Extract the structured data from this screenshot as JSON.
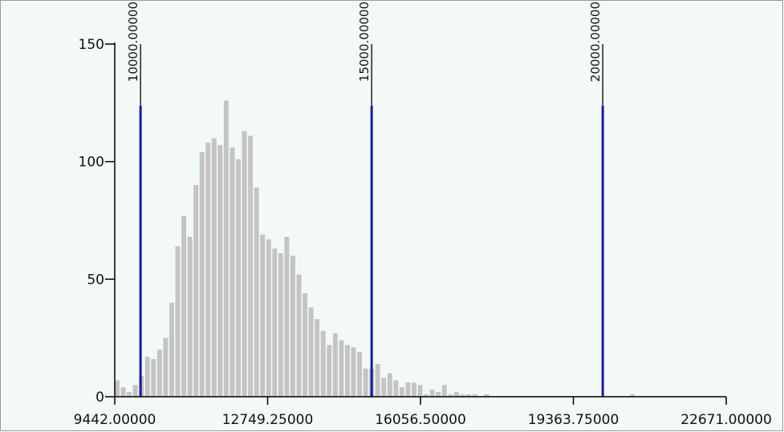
{
  "chart_data": {
    "type": "bar",
    "title": "",
    "xlabel": "",
    "ylabel": "",
    "xlim": [
      9442.0,
      22671.0
    ],
    "ylim": [
      0,
      150
    ],
    "bin_width": 131.1,
    "x_ticks": [
      {
        "value": 9442.0,
        "label": "9442.00000"
      },
      {
        "value": 12749.25,
        "label": "12749.25000"
      },
      {
        "value": 16056.5,
        "label": "16056.50000"
      },
      {
        "value": 19363.75,
        "label": "19363.75000"
      },
      {
        "value": 22671.0,
        "label": "22671.00000"
      }
    ],
    "y_ticks": [
      {
        "value": 0,
        "label": "0"
      },
      {
        "value": 50,
        "label": "50"
      },
      {
        "value": 100,
        "label": "100"
      },
      {
        "value": 150,
        "label": "150"
      }
    ],
    "reference_lines": [
      {
        "value": 10000.0,
        "label": "10000.00000",
        "color": "#1a1aa6"
      },
      {
        "value": 15000.0,
        "label": "15000.00000",
        "color": "#1a1aa6"
      },
      {
        "value": 20000.0,
        "label": "20000.00000",
        "color": "#1a1aa6"
      }
    ],
    "bars": [
      {
        "x": 9442.0,
        "y": 7
      },
      {
        "x": 9573.1,
        "y": 4
      },
      {
        "x": 9704.2,
        "y": 2
      },
      {
        "x": 9835.3,
        "y": 5
      },
      {
        "x": 9966.4,
        "y": 9
      },
      {
        "x": 10097.5,
        "y": 17
      },
      {
        "x": 10228.6,
        "y": 16
      },
      {
        "x": 10359.7,
        "y": 20
      },
      {
        "x": 10490.8,
        "y": 25
      },
      {
        "x": 10621.9,
        "y": 40
      },
      {
        "x": 10753.0,
        "y": 64
      },
      {
        "x": 10884.1,
        "y": 77
      },
      {
        "x": 11015.2,
        "y": 68
      },
      {
        "x": 11146.3,
        "y": 90
      },
      {
        "x": 11277.4,
        "y": 104
      },
      {
        "x": 11408.5,
        "y": 108
      },
      {
        "x": 11539.6,
        "y": 110
      },
      {
        "x": 11670.7,
        "y": 107
      },
      {
        "x": 11801.8,
        "y": 126
      },
      {
        "x": 11932.9,
        "y": 106
      },
      {
        "x": 12064.0,
        "y": 101
      },
      {
        "x": 12195.1,
        "y": 113
      },
      {
        "x": 12326.2,
        "y": 111
      },
      {
        "x": 12457.3,
        "y": 89
      },
      {
        "x": 12588.4,
        "y": 69
      },
      {
        "x": 12719.5,
        "y": 67
      },
      {
        "x": 12850.6,
        "y": 63
      },
      {
        "x": 12981.7,
        "y": 61
      },
      {
        "x": 13112.8,
        "y": 68
      },
      {
        "x": 13243.9,
        "y": 60
      },
      {
        "x": 13375.0,
        "y": 52
      },
      {
        "x": 13506.1,
        "y": 44
      },
      {
        "x": 13637.2,
        "y": 38
      },
      {
        "x": 13768.3,
        "y": 33
      },
      {
        "x": 13899.4,
        "y": 28
      },
      {
        "x": 14030.5,
        "y": 22
      },
      {
        "x": 14161.6,
        "y": 27
      },
      {
        "x": 14292.7,
        "y": 24
      },
      {
        "x": 14423.8,
        "y": 22
      },
      {
        "x": 14554.9,
        "y": 21
      },
      {
        "x": 14686.0,
        "y": 19
      },
      {
        "x": 14817.1,
        "y": 12
      },
      {
        "x": 14948.2,
        "y": 12
      },
      {
        "x": 15079.3,
        "y": 14
      },
      {
        "x": 15210.4,
        "y": 8
      },
      {
        "x": 15341.5,
        "y": 10
      },
      {
        "x": 15472.6,
        "y": 7
      },
      {
        "x": 15603.7,
        "y": 4
      },
      {
        "x": 15734.8,
        "y": 6
      },
      {
        "x": 15865.9,
        "y": 6
      },
      {
        "x": 15997.0,
        "y": 5
      },
      {
        "x": 16128.1,
        "y": 1
      },
      {
        "x": 16259.2,
        "y": 3
      },
      {
        "x": 16390.3,
        "y": 2
      },
      {
        "x": 16521.4,
        "y": 5
      },
      {
        "x": 16652.5,
        "y": 1
      },
      {
        "x": 16783.6,
        "y": 2
      },
      {
        "x": 16914.7,
        "y": 1
      },
      {
        "x": 17045.8,
        "y": 1
      },
      {
        "x": 17176.9,
        "y": 1
      },
      {
        "x": 17439.1,
        "y": 1
      },
      {
        "x": 20586.0,
        "y": 1
      }
    ]
  }
}
